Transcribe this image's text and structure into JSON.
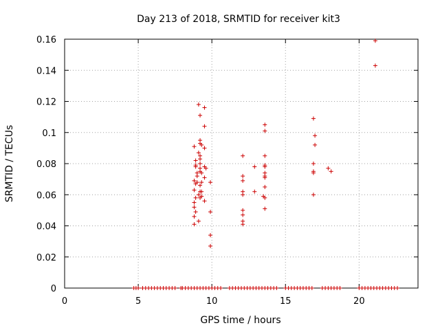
{
  "chart_data": {
    "type": "scatter",
    "title": "Day 213 of 2018, SRMTID for receiver kit3",
    "xlabel": "GPS time / hours",
    "ylabel": "SRMTID / TECUs",
    "xlim": [
      0,
      24
    ],
    "ylim": [
      0,
      0.16
    ],
    "xticks": [
      0,
      5,
      10,
      15,
      20
    ],
    "yticks": [
      0,
      0.02,
      0.04,
      0.06,
      0.08,
      0.1,
      0.12,
      0.14,
      0.16
    ],
    "xtick_labels": [
      "0",
      "5",
      "10",
      "15",
      "20"
    ],
    "ytick_labels": [
      "0",
      "0.02",
      "0.04",
      "0.06",
      "0.08",
      "0.1",
      "0.12",
      "0.14",
      "0.16"
    ],
    "grid": true,
    "legend": "none",
    "marker_color": "#cc0000",
    "zero_run_x": [
      4.7,
      4.85,
      5.0,
      5.3,
      5.5,
      5.7,
      5.9,
      6.1,
      6.3,
      6.5,
      6.7,
      6.9,
      7.1,
      7.3,
      7.5,
      7.9,
      8.0,
      8.2,
      8.4,
      8.6,
      8.8,
      9.0,
      9.2,
      9.4,
      9.6,
      9.8,
      10.0,
      10.2,
      10.4,
      10.6,
      11.2,
      11.4,
      11.6,
      11.8,
      12.0,
      12.2,
      12.4,
      12.6,
      12.8,
      13.0,
      13.2,
      13.4,
      13.6,
      13.8,
      14.0,
      14.2,
      14.4,
      15.0,
      15.2,
      15.4,
      15.6,
      15.8,
      16.0,
      16.2,
      16.4,
      16.6,
      16.8,
      17.5,
      17.7,
      17.9,
      18.1,
      18.3,
      18.5,
      18.7,
      20.0,
      20.2,
      20.4,
      20.6,
      20.8,
      21.0,
      21.2,
      21.4,
      21.6,
      21.8,
      22.0,
      22.2,
      22.4,
      22.6
    ],
    "points": [
      {
        "x": 8.8,
        "y": 0.091
      },
      {
        "x": 8.8,
        "y": 0.069
      },
      {
        "x": 8.8,
        "y": 0.063
      },
      {
        "x": 8.8,
        "y": 0.055
      },
      {
        "x": 8.8,
        "y": 0.052
      },
      {
        "x": 8.8,
        "y": 0.046
      },
      {
        "x": 8.8,
        "y": 0.041
      },
      {
        "x": 8.9,
        "y": 0.082
      },
      {
        "x": 8.9,
        "y": 0.079
      },
      {
        "x": 8.9,
        "y": 0.078
      },
      {
        "x": 8.9,
        "y": 0.067
      },
      {
        "x": 8.9,
        "y": 0.058
      },
      {
        "x": 8.9,
        "y": 0.049
      },
      {
        "x": 9.0,
        "y": 0.074
      },
      {
        "x": 9.0,
        "y": 0.072
      },
      {
        "x": 9.0,
        "y": 0.068
      },
      {
        "x": 9.1,
        "y": 0.118
      },
      {
        "x": 9.1,
        "y": 0.087
      },
      {
        "x": 9.1,
        "y": 0.06
      },
      {
        "x": 9.1,
        "y": 0.043
      },
      {
        "x": 9.2,
        "y": 0.111
      },
      {
        "x": 9.2,
        "y": 0.095
      },
      {
        "x": 9.2,
        "y": 0.093
      },
      {
        "x": 9.2,
        "y": 0.085
      },
      {
        "x": 9.2,
        "y": 0.083
      },
      {
        "x": 9.2,
        "y": 0.08
      },
      {
        "x": 9.2,
        "y": 0.077
      },
      {
        "x": 9.2,
        "y": 0.075
      },
      {
        "x": 9.2,
        "y": 0.066
      },
      {
        "x": 9.2,
        "y": 0.062
      },
      {
        "x": 9.2,
        "y": 0.058
      },
      {
        "x": 9.3,
        "y": 0.092
      },
      {
        "x": 9.3,
        "y": 0.074
      },
      {
        "x": 9.3,
        "y": 0.068
      },
      {
        "x": 9.3,
        "y": 0.062
      },
      {
        "x": 9.3,
        "y": 0.059
      },
      {
        "x": 9.5,
        "y": 0.116
      },
      {
        "x": 9.5,
        "y": 0.104
      },
      {
        "x": 9.5,
        "y": 0.09
      },
      {
        "x": 9.5,
        "y": 0.078
      },
      {
        "x": 9.5,
        "y": 0.071
      },
      {
        "x": 9.5,
        "y": 0.056
      },
      {
        "x": 9.6,
        "y": 0.077
      },
      {
        "x": 9.9,
        "y": 0.068
      },
      {
        "x": 9.9,
        "y": 0.049
      },
      {
        "x": 9.9,
        "y": 0.034
      },
      {
        "x": 9.9,
        "y": 0.027
      },
      {
        "x": 12.1,
        "y": 0.085
      },
      {
        "x": 12.1,
        "y": 0.072
      },
      {
        "x": 12.1,
        "y": 0.069
      },
      {
        "x": 12.1,
        "y": 0.062
      },
      {
        "x": 12.1,
        "y": 0.06
      },
      {
        "x": 12.1,
        "y": 0.05
      },
      {
        "x": 12.1,
        "y": 0.047
      },
      {
        "x": 12.1,
        "y": 0.043
      },
      {
        "x": 12.1,
        "y": 0.041
      },
      {
        "x": 12.9,
        "y": 0.078
      },
      {
        "x": 12.9,
        "y": 0.062
      },
      {
        "x": 13.5,
        "y": 0.059
      },
      {
        "x": 13.6,
        "y": 0.105
      },
      {
        "x": 13.6,
        "y": 0.101
      },
      {
        "x": 13.6,
        "y": 0.085
      },
      {
        "x": 13.6,
        "y": 0.079
      },
      {
        "x": 13.6,
        "y": 0.078
      },
      {
        "x": 13.6,
        "y": 0.074
      },
      {
        "x": 13.6,
        "y": 0.072
      },
      {
        "x": 13.6,
        "y": 0.071
      },
      {
        "x": 13.6,
        "y": 0.065
      },
      {
        "x": 13.6,
        "y": 0.058
      },
      {
        "x": 13.6,
        "y": 0.051
      },
      {
        "x": 16.9,
        "y": 0.109
      },
      {
        "x": 16.9,
        "y": 0.08
      },
      {
        "x": 16.9,
        "y": 0.075
      },
      {
        "x": 16.9,
        "y": 0.074
      },
      {
        "x": 16.9,
        "y": 0.06
      },
      {
        "x": 17.0,
        "y": 0.098
      },
      {
        "x": 17.0,
        "y": 0.092
      },
      {
        "x": 17.9,
        "y": 0.077
      },
      {
        "x": 18.1,
        "y": 0.075
      },
      {
        "x": 21.1,
        "y": 0.159
      },
      {
        "x": 21.1,
        "y": 0.143
      }
    ]
  }
}
